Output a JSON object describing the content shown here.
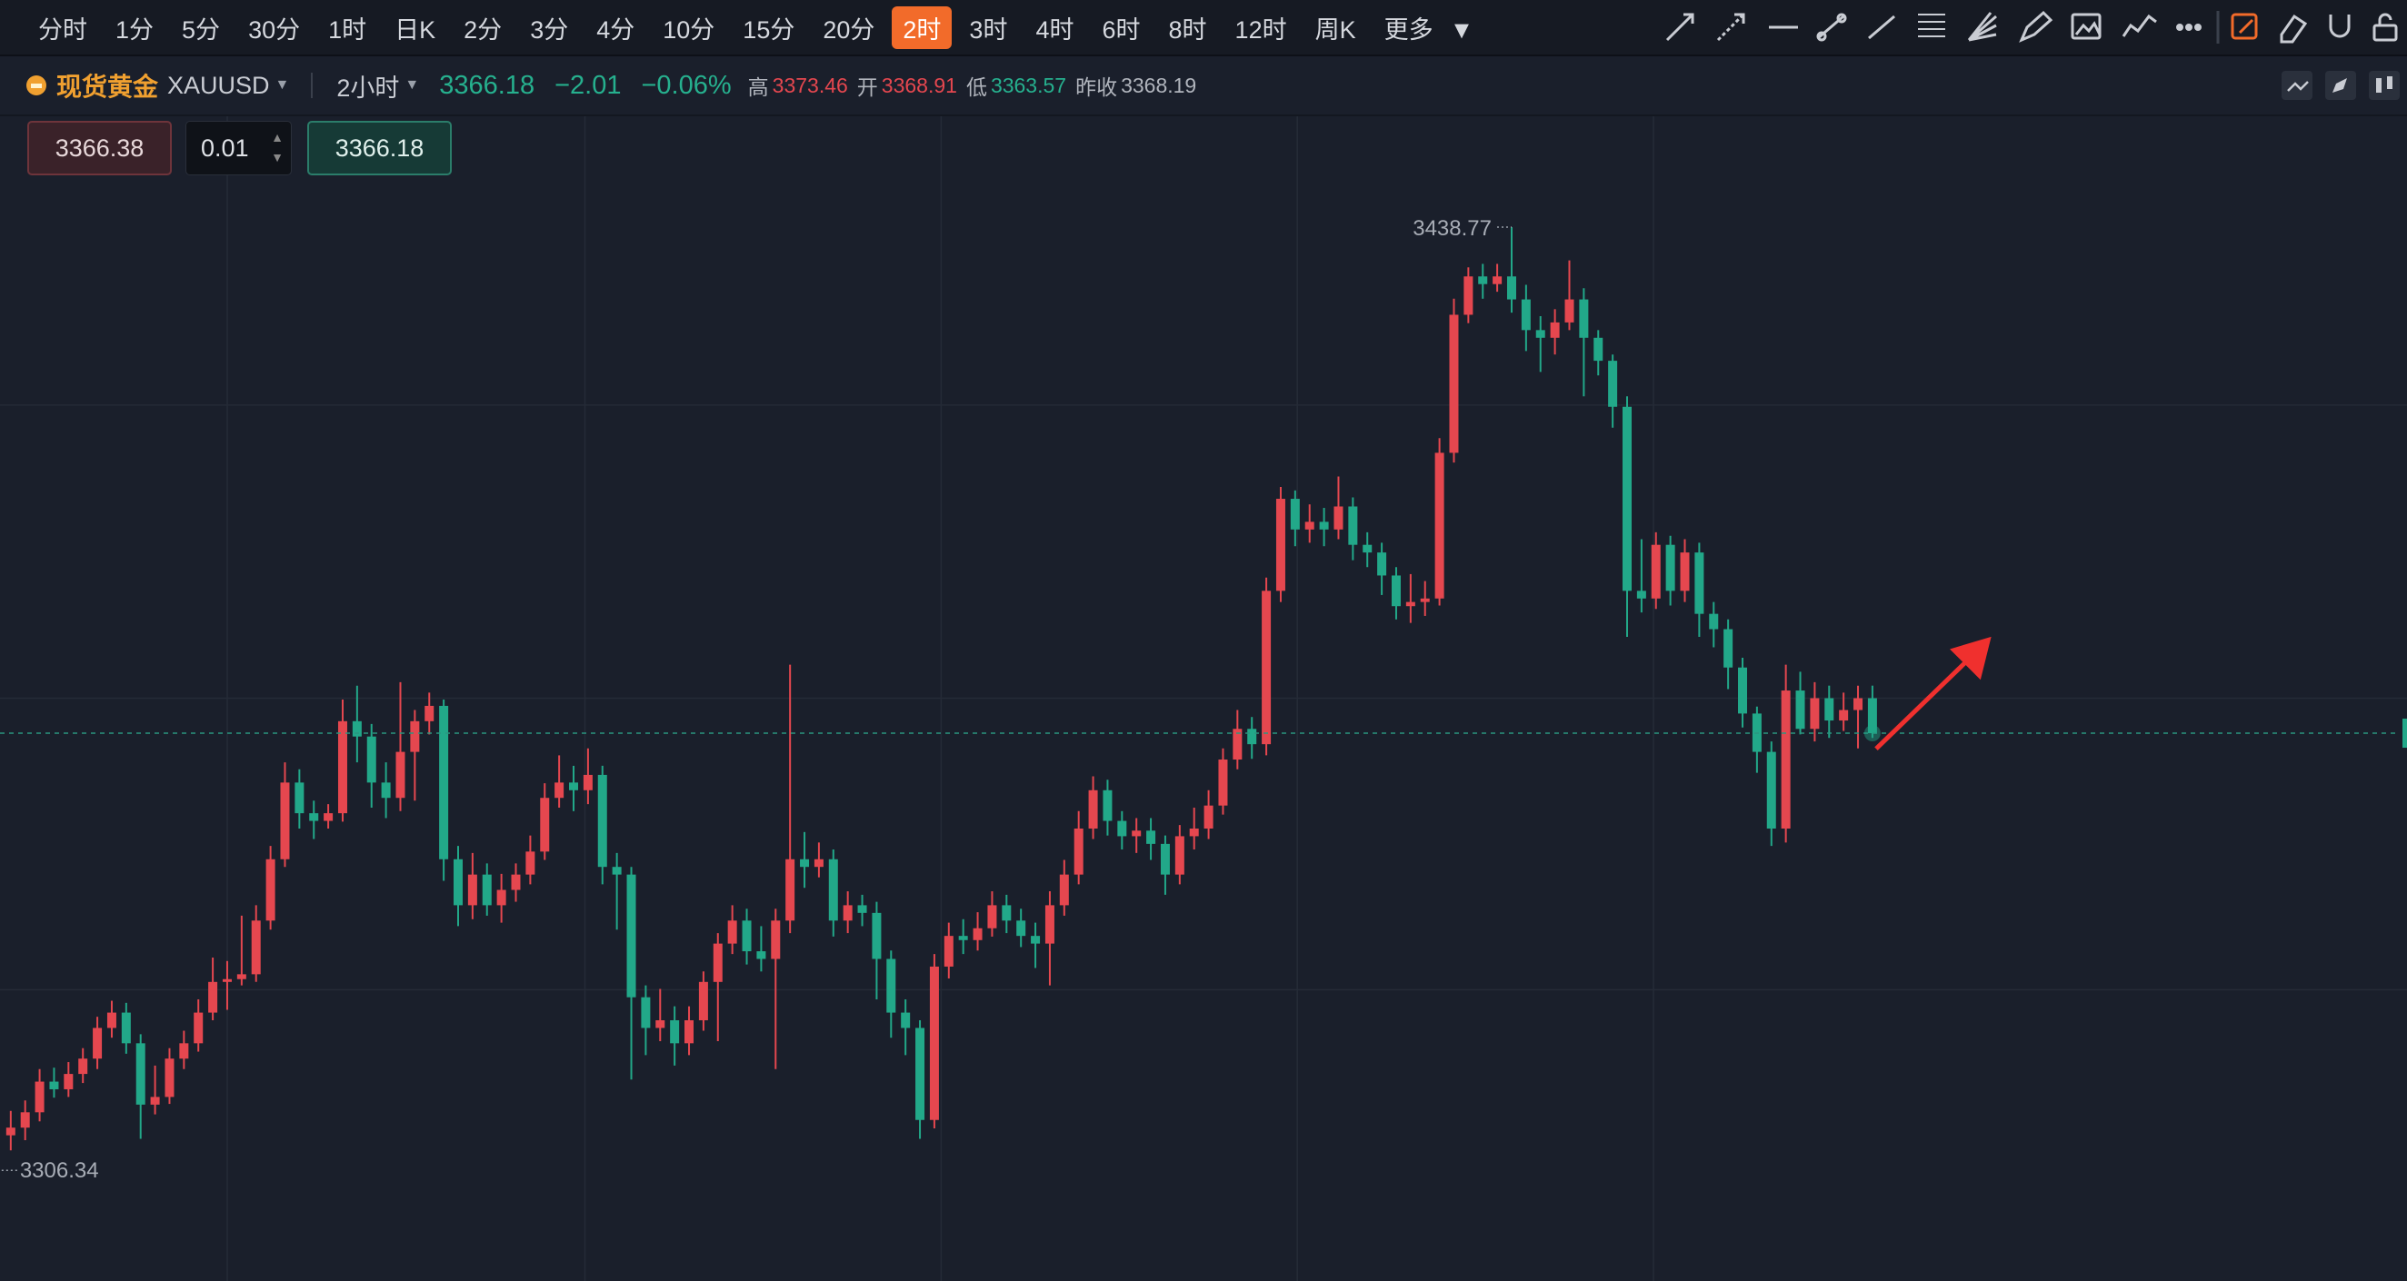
{
  "toolbar": {
    "intervals": [
      "分时",
      "1分",
      "5分",
      "30分",
      "1时",
      "日K",
      "2分",
      "3分",
      "4分",
      "10分",
      "15分",
      "20分",
      "2时",
      "3时",
      "4时",
      "6时",
      "8时",
      "12时",
      "周K",
      "更多"
    ],
    "active": 12
  },
  "header": {
    "name": "现货黄金",
    "symbol": "XAUUSD",
    "period": "2小时",
    "price": "3366.18",
    "change": "−2.01",
    "change_pct": "−0.06%",
    "stats": [
      {
        "label": "高",
        "value": "3373.46",
        "tone": "up"
      },
      {
        "label": "开",
        "value": "3368.91",
        "tone": "up"
      },
      {
        "label": "低",
        "value": "3363.57",
        "tone": "down"
      },
      {
        "label": "昨收",
        "value": "3368.19",
        "tone": "plain"
      }
    ]
  },
  "order": {
    "bid": "3366.38",
    "quantity": "0.01",
    "ask": "3366.18"
  },
  "chart": {
    "type": "candlestick",
    "ylim": [
      3287.6,
      3454.8
    ],
    "up_color": "#e5474f",
    "down_color": "#22a889",
    "grid": true,
    "candles": [
      [
        3308.5,
        3312.0,
        3306.34,
        3309.6
      ],
      [
        3309.6,
        3313.5,
        3307.8,
        3311.8
      ],
      [
        3311.8,
        3318.0,
        3310.5,
        3316.2
      ],
      [
        3316.2,
        3318.2,
        3313.9,
        3315.1
      ],
      [
        3315.1,
        3319.0,
        3314.0,
        3317.3
      ],
      [
        3317.3,
        3321.0,
        3316.0,
        3319.5
      ],
      [
        3319.5,
        3325.5,
        3318.0,
        3323.9
      ],
      [
        3323.9,
        3327.8,
        3322.5,
        3326.1
      ],
      [
        3326.1,
        3327.5,
        3320.2,
        3321.7
      ],
      [
        3321.7,
        3323.0,
        3308.0,
        3312.9
      ],
      [
        3312.9,
        3318.5,
        3311.5,
        3314.0
      ],
      [
        3314.0,
        3321.0,
        3313.0,
        3319.5
      ],
      [
        3319.5,
        3323.5,
        3318.0,
        3321.7
      ],
      [
        3321.7,
        3328.0,
        3320.5,
        3326.1
      ],
      [
        3326.1,
        3334.0,
        3325.0,
        3330.5
      ],
      [
        3330.5,
        3333.5,
        3326.5,
        3330.9
      ],
      [
        3330.9,
        3340.0,
        3330.0,
        3331.6
      ],
      [
        3331.6,
        3341.5,
        3330.5,
        3339.3
      ],
      [
        3339.3,
        3350.0,
        3338.0,
        3348.1
      ],
      [
        3348.1,
        3362.0,
        3347.0,
        3359.1
      ],
      [
        3359.1,
        3361.0,
        3352.5,
        3354.7
      ],
      [
        3354.7,
        3356.5,
        3351.0,
        3353.6
      ],
      [
        3353.6,
        3356.0,
        3352.5,
        3354.7
      ],
      [
        3354.7,
        3371.0,
        3353.5,
        3367.9
      ],
      [
        3367.9,
        3373.0,
        3362.0,
        3365.7
      ],
      [
        3365.7,
        3367.5,
        3355.5,
        3359.1
      ],
      [
        3359.1,
        3362.0,
        3354.0,
        3356.9
      ],
      [
        3356.9,
        3373.5,
        3355.0,
        3363.5
      ],
      [
        3363.5,
        3369.5,
        3356.5,
        3367.9
      ],
      [
        3367.9,
        3372.0,
        3366.0,
        3370.1
      ],
      [
        3370.1,
        3371.0,
        3345.0,
        3348.1
      ],
      [
        3348.1,
        3350.0,
        3338.5,
        3341.5
      ],
      [
        3341.5,
        3349.0,
        3339.5,
        3345.9
      ],
      [
        3345.9,
        3347.5,
        3340.0,
        3341.5
      ],
      [
        3341.5,
        3346.0,
        3339.0,
        3343.7
      ],
      [
        3343.7,
        3347.5,
        3342.0,
        3345.9
      ],
      [
        3345.9,
        3351.5,
        3344.5,
        3349.2
      ],
      [
        3349.2,
        3359.0,
        3348.0,
        3356.9
      ],
      [
        3356.9,
        3363.0,
        3355.5,
        3359.1
      ],
      [
        3359.1,
        3361.5,
        3355.0,
        3358.0
      ],
      [
        3358.0,
        3364.0,
        3356.0,
        3360.2
      ],
      [
        3360.2,
        3361.5,
        3344.5,
        3347.0
      ],
      [
        3347.0,
        3349.0,
        3338.0,
        3345.9
      ],
      [
        3345.9,
        3347.0,
        3316.5,
        3328.3
      ],
      [
        3328.3,
        3330.0,
        3320.0,
        3323.9
      ],
      [
        3323.9,
        3329.5,
        3322.0,
        3325.0
      ],
      [
        3325.0,
        3327.0,
        3318.5,
        3321.7
      ],
      [
        3321.7,
        3327.0,
        3320.0,
        3325.0
      ],
      [
        3325.0,
        3332.0,
        3323.5,
        3330.5
      ],
      [
        3330.5,
        3337.5,
        3322.0,
        3336.0
      ],
      [
        3336.0,
        3341.5,
        3334.5,
        3339.3
      ],
      [
        3339.3,
        3341.0,
        3333.0,
        3334.9
      ],
      [
        3334.9,
        3338.5,
        3332.0,
        3333.8
      ],
      [
        3333.8,
        3341.0,
        3318.0,
        3339.3
      ],
      [
        3339.3,
        3376.0,
        3337.5,
        3348.1
      ],
      [
        3348.1,
        3352.0,
        3344.0,
        3347.0
      ],
      [
        3347.0,
        3350.5,
        3345.5,
        3348.1
      ],
      [
        3348.1,
        3349.5,
        3337.0,
        3339.3
      ],
      [
        3339.3,
        3343.5,
        3337.5,
        3341.5
      ],
      [
        3341.5,
        3343.0,
        3338.5,
        3340.4
      ],
      [
        3340.4,
        3342.0,
        3328.0,
        3333.8
      ],
      [
        3333.8,
        3335.0,
        3322.5,
        3326.1
      ],
      [
        3326.1,
        3328.0,
        3320.0,
        3323.9
      ],
      [
        3323.9,
        3325.0,
        3308.0,
        3310.7
      ],
      [
        3310.7,
        3334.5,
        3309.5,
        3332.7
      ],
      [
        3332.7,
        3339.0,
        3331.0,
        3337.1
      ],
      [
        3337.1,
        3339.5,
        3334.5,
        3336.5
      ],
      [
        3336.5,
        3340.5,
        3335.0,
        3338.2
      ],
      [
        3338.2,
        3343.5,
        3337.0,
        3341.5
      ],
      [
        3341.5,
        3343.0,
        3337.5,
        3339.3
      ],
      [
        3339.3,
        3341.0,
        3335.5,
        3337.1
      ],
      [
        3337.1,
        3339.0,
        3332.5,
        3336.0
      ],
      [
        3336.0,
        3343.5,
        3330.0,
        3341.5
      ],
      [
        3341.5,
        3348.0,
        3340.0,
        3345.9
      ],
      [
        3345.9,
        3355.0,
        3344.5,
        3352.5
      ],
      [
        3352.5,
        3360.0,
        3351.0,
        3358.0
      ],
      [
        3358.0,
        3359.5,
        3351.5,
        3353.6
      ],
      [
        3353.6,
        3355.0,
        3349.5,
        3351.4
      ],
      [
        3351.4,
        3354.0,
        3349.0,
        3352.2
      ],
      [
        3352.2,
        3354.0,
        3348.0,
        3350.3
      ],
      [
        3350.3,
        3351.5,
        3343.0,
        3345.9
      ],
      [
        3345.9,
        3353.0,
        3344.5,
        3351.4
      ],
      [
        3351.4,
        3355.5,
        3349.5,
        3352.5
      ],
      [
        3352.5,
        3358.0,
        3351.0,
        3355.8
      ],
      [
        3355.8,
        3364.0,
        3354.5,
        3362.4
      ],
      [
        3362.4,
        3369.5,
        3361.0,
        3366.8
      ],
      [
        3366.8,
        3368.5,
        3362.5,
        3364.6
      ],
      [
        3364.6,
        3388.5,
        3363.0,
        3386.6
      ],
      [
        3386.6,
        3401.5,
        3385.0,
        3399.8
      ],
      [
        3399.8,
        3401.0,
        3393.0,
        3395.4
      ],
      [
        3395.4,
        3399.0,
        3393.5,
        3396.5
      ],
      [
        3396.5,
        3398.5,
        3393.0,
        3395.4
      ],
      [
        3395.4,
        3403.0,
        3394.0,
        3398.7
      ],
      [
        3398.7,
        3400.0,
        3391.0,
        3393.2
      ],
      [
        3393.2,
        3395.0,
        3390.0,
        3392.1
      ],
      [
        3392.1,
        3393.5,
        3386.0,
        3388.8
      ],
      [
        3388.8,
        3390.0,
        3382.5,
        3384.4
      ],
      [
        3384.4,
        3389.0,
        3382.0,
        3385.0
      ],
      [
        3385.0,
        3388.0,
        3383.0,
        3385.5
      ],
      [
        3385.5,
        3408.5,
        3384.5,
        3406.4
      ],
      [
        3406.4,
        3428.5,
        3405.0,
        3426.2
      ],
      [
        3426.2,
        3433.0,
        3425.0,
        3431.7
      ],
      [
        3431.7,
        3433.5,
        3428.5,
        3430.6
      ],
      [
        3430.6,
        3433.5,
        3429.5,
        3431.7
      ],
      [
        3431.7,
        3438.77,
        3426.5,
        3428.4
      ],
      [
        3428.4,
        3430.5,
        3421.0,
        3424.0
      ],
      [
        3424.0,
        3426.0,
        3418.0,
        3422.9
      ],
      [
        3422.9,
        3427.0,
        3420.5,
        3425.1
      ],
      [
        3425.1,
        3434.0,
        3424.0,
        3428.4
      ],
      [
        3428.4,
        3430.0,
        3414.5,
        3422.9
      ],
      [
        3422.9,
        3424.0,
        3417.5,
        3419.6
      ],
      [
        3419.6,
        3420.5,
        3410.0,
        3413.0
      ],
      [
        3413.0,
        3414.5,
        3380.0,
        3386.6
      ],
      [
        3386.6,
        3394.0,
        3383.5,
        3385.5
      ],
      [
        3385.5,
        3395.0,
        3384.0,
        3393.2
      ],
      [
        3393.2,
        3394.5,
        3384.5,
        3386.6
      ],
      [
        3386.6,
        3394.0,
        3385.0,
        3392.1
      ],
      [
        3392.1,
        3393.5,
        3380.0,
        3383.3
      ],
      [
        3383.3,
        3385.0,
        3378.5,
        3381.1
      ],
      [
        3381.1,
        3382.5,
        3372.5,
        3375.6
      ],
      [
        3375.6,
        3377.0,
        3367.0,
        3369.0
      ],
      [
        3369.0,
        3370.0,
        3360.5,
        3363.5
      ],
      [
        3363.5,
        3365.0,
        3350.0,
        3352.5
      ],
      [
        3352.5,
        3376.0,
        3350.5,
        3372.3
      ],
      [
        3372.3,
        3375.0,
        3366.0,
        3366.8
      ],
      [
        3366.8,
        3373.5,
        3365.0,
        3371.2
      ],
      [
        3371.2,
        3373.0,
        3365.5,
        3368.0
      ],
      [
        3368.0,
        3372.0,
        3366.5,
        3369.5
      ],
      [
        3369.5,
        3373.0,
        3364.0,
        3371.2
      ],
      [
        3371.2,
        3373.0,
        3365.5,
        3366.18
      ]
    ]
  }
}
